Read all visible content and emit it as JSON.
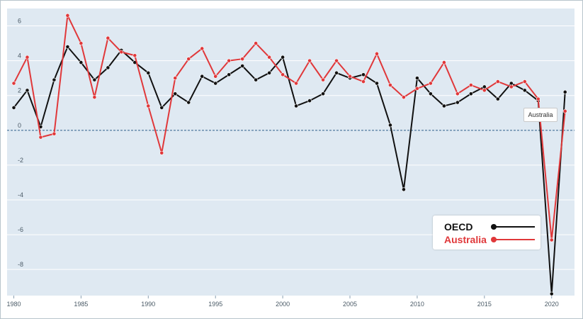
{
  "chart_data": {
    "type": "line",
    "x": [
      1980,
      1981,
      1982,
      1983,
      1984,
      1985,
      1986,
      1987,
      1988,
      1989,
      1990,
      1991,
      1992,
      1993,
      1994,
      1995,
      1996,
      1997,
      1998,
      1999,
      2000,
      2001,
      2002,
      2003,
      2004,
      2005,
      2006,
      2007,
      2008,
      2009,
      2010,
      2011,
      2012,
      2013,
      2014,
      2015,
      2016,
      2017,
      2018,
      2019,
      2020,
      2021
    ],
    "series": [
      {
        "name": "OECD",
        "color": "#111111",
        "values": [
          1.3,
          2.3,
          0.2,
          2.9,
          4.8,
          3.9,
          2.9,
          3.6,
          4.6,
          3.9,
          3.3,
          1.3,
          2.1,
          1.6,
          3.1,
          2.7,
          3.2,
          3.7,
          2.9,
          3.3,
          4.2,
          1.4,
          1.7,
          2.1,
          3.3,
          3.0,
          3.2,
          2.7,
          0.3,
          -3.4,
          3.0,
          2.1,
          1.4,
          1.6,
          2.1,
          2.5,
          1.8,
          2.7,
          2.3,
          1.7,
          -9.4,
          2.2
        ]
      },
      {
        "name": "Australia",
        "color": "#e0383a",
        "values": [
          2.7,
          4.2,
          -0.4,
          -0.2,
          6.6,
          5.0,
          1.9,
          5.3,
          4.5,
          4.3,
          1.4,
          -1.3,
          3.0,
          4.1,
          4.7,
          3.1,
          4.0,
          4.1,
          5.0,
          4.2,
          3.2,
          2.7,
          4.0,
          2.9,
          4.0,
          3.1,
          2.8,
          4.4,
          2.6,
          1.9,
          2.4,
          2.7,
          3.9,
          2.1,
          2.6,
          2.3,
          2.8,
          2.5,
          2.8,
          1.8,
          -6.3,
          1.1
        ]
      }
    ],
    "xticks": [
      1980,
      1985,
      1990,
      1995,
      2000,
      2005,
      2010,
      2015,
      2020
    ],
    "yticks": [
      -8,
      -6,
      -4,
      -2,
      0,
      2,
      4,
      6
    ],
    "xlim": [
      1979.5,
      2021.7
    ],
    "ylim": [
      -9.5,
      7.0
    ],
    "grid": "horizontal",
    "zero_line": "dashed",
    "legend_position": "bottom-right",
    "background": "#dfe9f2",
    "tooltip_label": "Australia"
  },
  "legend": {
    "oecd_label": "OECD",
    "australia_label": "Australia"
  }
}
